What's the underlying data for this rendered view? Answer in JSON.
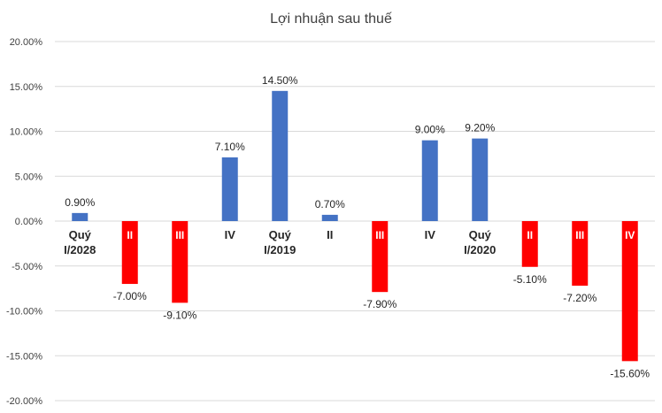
{
  "chart_data": {
    "type": "bar",
    "title": "Lợi nhuận sau thuế",
    "categories": [
      [
        "Quý",
        "I/2028"
      ],
      [
        "II"
      ],
      [
        "III"
      ],
      [
        "IV"
      ],
      [
        "Quý",
        "I/2019"
      ],
      [
        "II"
      ],
      [
        "III"
      ],
      [
        "IV"
      ],
      [
        "Quý",
        "I/2020"
      ],
      [
        "II"
      ],
      [
        "III"
      ],
      [
        "IV"
      ]
    ],
    "values": [
      0.9,
      -7.0,
      -9.1,
      7.1,
      14.5,
      0.7,
      -7.9,
      9.0,
      9.2,
      -5.1,
      -7.2,
      -15.6
    ],
    "data_labels": [
      "0.90%",
      "-7.00%",
      "-9.10%",
      "7.10%",
      "14.50%",
      "0.70%",
      "-7.90%",
      "9.00%",
      "9.20%",
      "-5.10%",
      "-7.20%",
      "-15.60%"
    ],
    "ylim": [
      -20,
      20
    ],
    "yticks": [
      20,
      15,
      10,
      5,
      0,
      -5,
      -10,
      -15,
      -20
    ],
    "ytick_labels": [
      "20.00%",
      "15.00%",
      "10.00%",
      "5.00%",
      "0.00%",
      "-5.00%",
      "-10.00%",
      "-15.00%",
      "-20.00%"
    ],
    "xlabel": "",
    "ylabel": "",
    "grid": true,
    "legend": "none",
    "colors": {
      "positive": "#4472c4",
      "negative": "#ff0000",
      "grid": "#d9d9d9"
    }
  }
}
